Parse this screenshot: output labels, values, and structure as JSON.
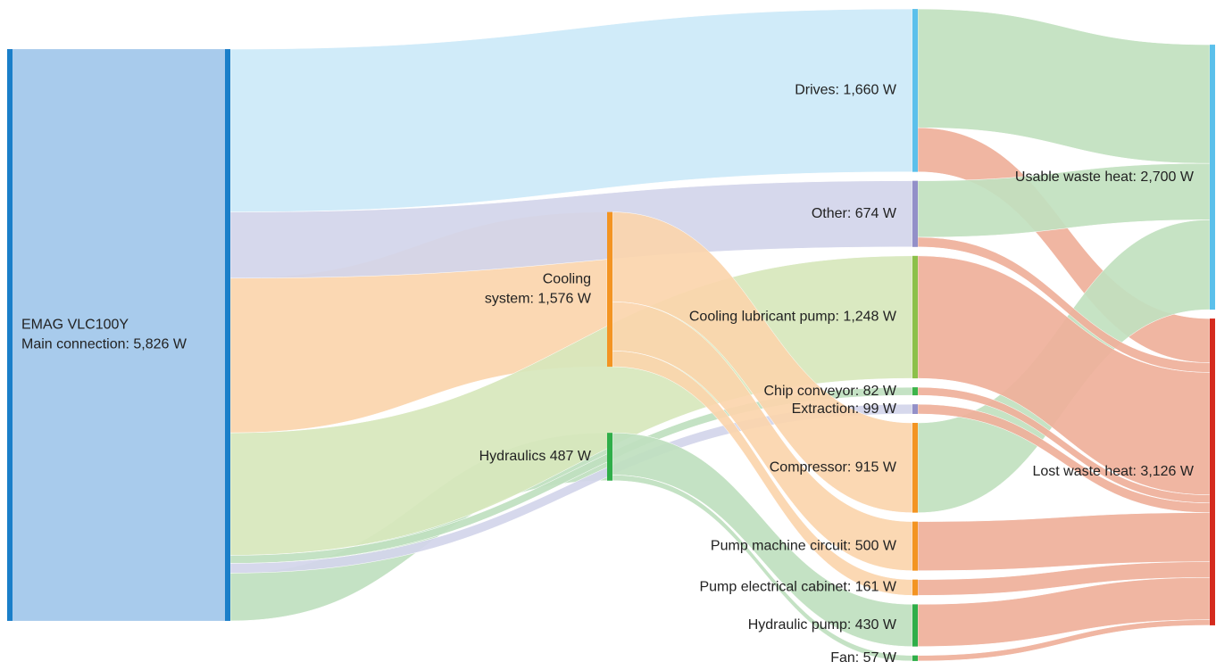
{
  "chart_data": {
    "type": "sankey",
    "nodes": [
      {
        "label": [
          "EMAG VLC100Y",
          "Main connection: 5,826 W"
        ],
        "value": 5826,
        "color": "#1a7fc9",
        "fill": "#a8cbec"
      },
      {
        "label": [
          "Drives: 1,660 W"
        ],
        "value": 1660,
        "color": "#5bc0eb",
        "fill": "#cce9f9"
      },
      {
        "label": [
          "Cooling",
          "system: 1,576 W"
        ],
        "value": 1576,
        "color": "#f39422",
        "fill": "#fbd5ac"
      },
      {
        "label": [
          "Other: 674 W"
        ],
        "value": 674,
        "color": "#9390c8",
        "fill": "#d2d5ea"
      },
      {
        "label": [
          "Hydraulics 487 W"
        ],
        "value": 487,
        "color": "#2fae49",
        "fill": "#bfe0bf"
      },
      {
        "label": [
          "Cooling lubricant pump: 1,248 W"
        ],
        "value": 1248,
        "color": "#8cc04a",
        "fill": "#d7e7bc"
      },
      {
        "label": [
          "Chip conveyor: 82 W"
        ],
        "value": 82,
        "color": "#3cb44a",
        "fill": "#bfe0bf"
      },
      {
        "label": [
          "Extraction: 99 W"
        ],
        "value": 99,
        "color": "#9390c8",
        "fill": "#d2d5ea"
      },
      {
        "label": [
          "Compressor: 915 W"
        ],
        "value": 915,
        "color": "#f39422",
        "fill": "#fbd5ac"
      },
      {
        "label": [
          "Pump machine circuit: 500 W"
        ],
        "value": 500,
        "color": "#f39422",
        "fill": "#fbd5ac"
      },
      {
        "label": [
          "Pump electrical cabinet: 161 W"
        ],
        "value": 161,
        "color": "#f39422",
        "fill": "#fbd5ac"
      },
      {
        "label": [
          "Hydraulic pump: 430 W"
        ],
        "value": 430,
        "color": "#2fae49",
        "fill": "#bfe0bf"
      },
      {
        "label": [
          "Fan: 57 W"
        ],
        "value": 57,
        "color": "#2fae49",
        "fill": "#bfe0bf"
      },
      {
        "label": [
          "Usable waste heat: 2,700 W"
        ],
        "value": 2700,
        "color": "#5bc0eb",
        "fill": "#c1e1bf"
      },
      {
        "label": [
          "Lost waste heat: 3,126 W"
        ],
        "value": 3126,
        "color": "#d52b1e",
        "fill": "#efb09a"
      }
    ],
    "links": [
      {
        "source": 0,
        "target": 1,
        "value": 1660
      },
      {
        "source": 0,
        "target": 2,
        "value": 1576
      },
      {
        "source": 0,
        "target": 3,
        "value": 674
      },
      {
        "source": 0,
        "target": 4,
        "value": 487
      },
      {
        "source": 0,
        "target": 5,
        "value": 1248
      },
      {
        "source": 0,
        "target": 6,
        "value": 82
      },
      {
        "source": 0,
        "target": 7,
        "value": 99
      },
      {
        "source": 2,
        "target": 8,
        "value": 915
      },
      {
        "source": 2,
        "target": 9,
        "value": 500
      },
      {
        "source": 2,
        "target": 10,
        "value": 161
      },
      {
        "source": 4,
        "target": 11,
        "value": 430
      },
      {
        "source": 4,
        "target": 12,
        "value": 57
      },
      {
        "source": 1,
        "target": 13,
        "value": 1210
      },
      {
        "source": 1,
        "target": 14,
        "value": 450
      },
      {
        "source": 8,
        "target": 13,
        "value": 915
      },
      {
        "source": 9,
        "target": 14,
        "value": 500
      },
      {
        "source": 10,
        "target": 14,
        "value": 161
      },
      {
        "source": 3,
        "target": 13,
        "value": 575
      },
      {
        "source": 3,
        "target": 14,
        "value": 99
      },
      {
        "source": 11,
        "target": 14,
        "value": 430
      },
      {
        "source": 12,
        "target": 14,
        "value": 57
      },
      {
        "source": 5,
        "target": 14,
        "value": 1248
      },
      {
        "source": 6,
        "target": 14,
        "value": 82
      },
      {
        "source": 7,
        "target": 14,
        "value": 99
      }
    ]
  }
}
